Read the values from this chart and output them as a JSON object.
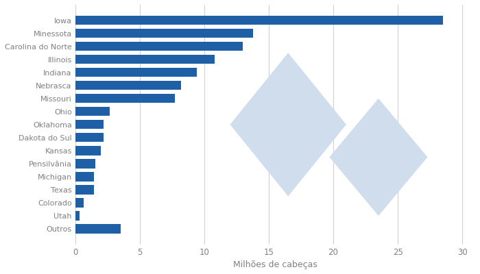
{
  "categories": [
    "Iowa",
    "Minessota",
    "Carolina do Norte",
    "Illinois",
    "Indiana",
    "Nebrasca",
    "Missouri",
    "Ohio",
    "Oklahoma",
    "Dakota do Sul",
    "Kansas",
    "Pensilvânia",
    "Michigan",
    "Texas",
    "Colorado",
    "Utah",
    "Outros"
  ],
  "values": [
    28.5,
    13.8,
    13.0,
    10.8,
    9.4,
    8.2,
    7.7,
    2.7,
    2.2,
    2.2,
    2.0,
    1.55,
    1.45,
    1.45,
    0.65,
    0.32,
    3.5
  ],
  "bar_color": "#1F5FA6",
  "xlabel": "Milhões de cabeças",
  "xlim": [
    0,
    31
  ],
  "xticks": [
    0,
    5,
    10,
    15,
    20,
    25,
    30
  ],
  "background_color": "#ffffff",
  "grid_color": "#d0d0d0",
  "label_color": "#808080",
  "watermark_color": "#cfdded",
  "watermark_text_color": "#ffffff",
  "bar_height": 0.7,
  "label_fontsize": 8.0,
  "xlabel_fontsize": 9.0,
  "xtick_fontsize": 8.5
}
